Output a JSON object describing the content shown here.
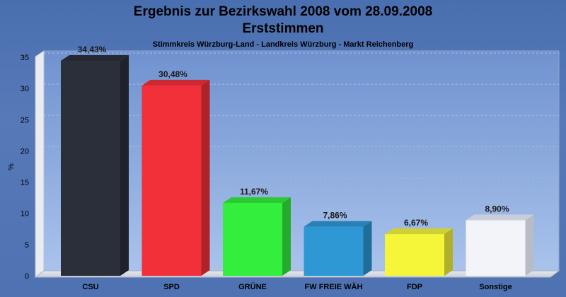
{
  "chart_data": {
    "type": "bar",
    "title": "Ergebnis zur Bezirkswahl 2008 vom 28.09.2008",
    "subtitle": "Erststimmen",
    "caption": "Stimmkreis Würzburg-Land - Landkreis Würzburg - Markt Reichenberg",
    "ylabel": "%",
    "xlabel": "",
    "ylim": [
      0,
      35
    ],
    "yticks": [
      0,
      5,
      10,
      15,
      20,
      25,
      30,
      35
    ],
    "grid": true,
    "categories": [
      "CSU",
      "SPD",
      "GRÜNE",
      "FW FREIE WÄH",
      "FDP",
      "Sonstige"
    ],
    "values": [
      34.43,
      30.48,
      11.67,
      7.86,
      6.67,
      8.9
    ],
    "data_labels": [
      "34,43%",
      "30,48%",
      "11,67%",
      "7,86%",
      "6,67%",
      "8,90%"
    ],
    "colors": [
      "#2b2f3a",
      "#f2303a",
      "#33ee3d",
      "#2e98d4",
      "#f5f53a",
      "#f2f4fa"
    ]
  }
}
